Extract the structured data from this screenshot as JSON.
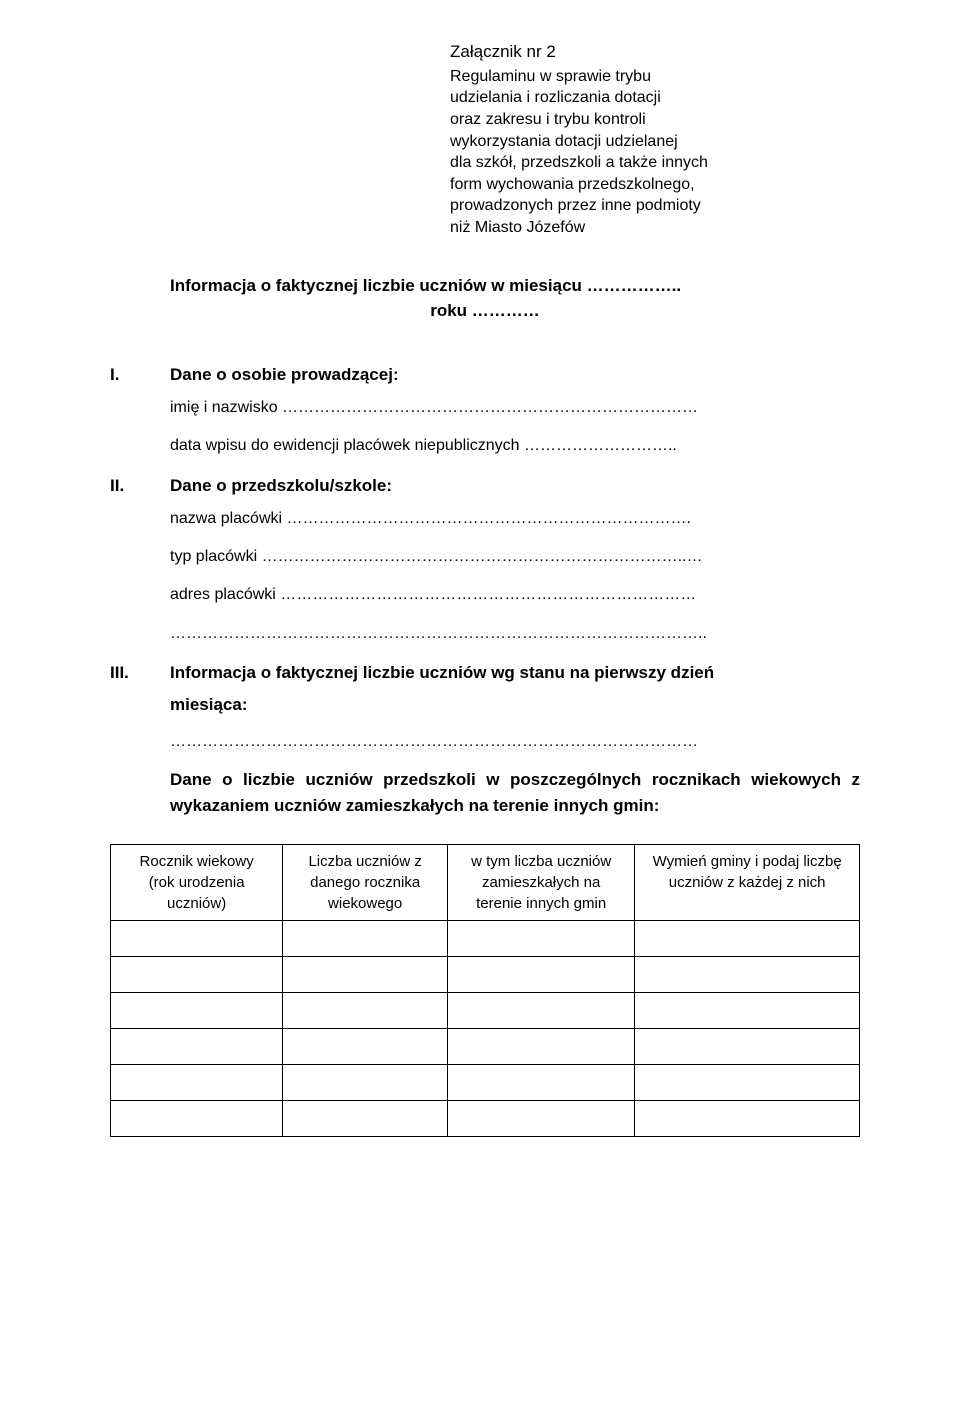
{
  "header": {
    "title": "Załącznik nr 2",
    "lines": [
      "Regulaminu w sprawie trybu",
      "udzielania i rozliczania dotacji",
      "oraz zakresu i trybu kontroli",
      "wykorzystania dotacji udzielanej",
      "dla szkół, przedszkoli a także innych",
      "form wychowania przedszkolnego,",
      "prowadzonych przez inne podmioty",
      "niż Miasto Józefów"
    ]
  },
  "info": {
    "line1": "Informacja o faktycznej liczbie uczniów w miesiącu ……………..",
    "line2": "roku …………"
  },
  "section1": {
    "roman": "I.",
    "title": "Dane o osobie prowadzącej:",
    "items": [
      "imię i nazwisko ……………………………………………………………………",
      "data wpisu do ewidencji placówek niepublicznych ……………………….."
    ]
  },
  "section2": {
    "roman": "II.",
    "title": "Dane o przedszkolu/szkole:",
    "items": [
      "nazwa placówki ………………………………………………………………….",
      "typ placówki ……………………………………………………………………..…",
      "adres placówki ……………………………………………………………………",
      "……………………………………………………………………………………….."
    ]
  },
  "section3": {
    "roman": "III.",
    "title_line1": "Informacja o faktycznej liczbie uczniów wg stanu na pierwszy dzień",
    "title_line2": "miesiąca:",
    "dotted": "………………………………………………………………………………………",
    "para": "Dane o liczbie uczniów przedszkoli w poszczególnych rocznikach wiekowych z wykazaniem uczniów zamieszkałych na terenie innych gmin:"
  },
  "table": {
    "columns": [
      {
        "h1": "Rocznik wiekowy",
        "h2": "(rok urodzenia",
        "h3": "uczniów)",
        "width": "23%"
      },
      {
        "h1": "Liczba uczniów z",
        "h2": "danego rocznika",
        "h3": "wiekowego",
        "width": "22%"
      },
      {
        "h1": "w tym liczba uczniów",
        "h2": "zamieszkałych na",
        "h3": "terenie innych gmin",
        "width": "25%"
      },
      {
        "h1": "Wymień gminy i podaj liczbę",
        "h2": "uczniów z każdej z nich",
        "h3": "",
        "width": "30%"
      }
    ],
    "empty_rows": 6
  }
}
